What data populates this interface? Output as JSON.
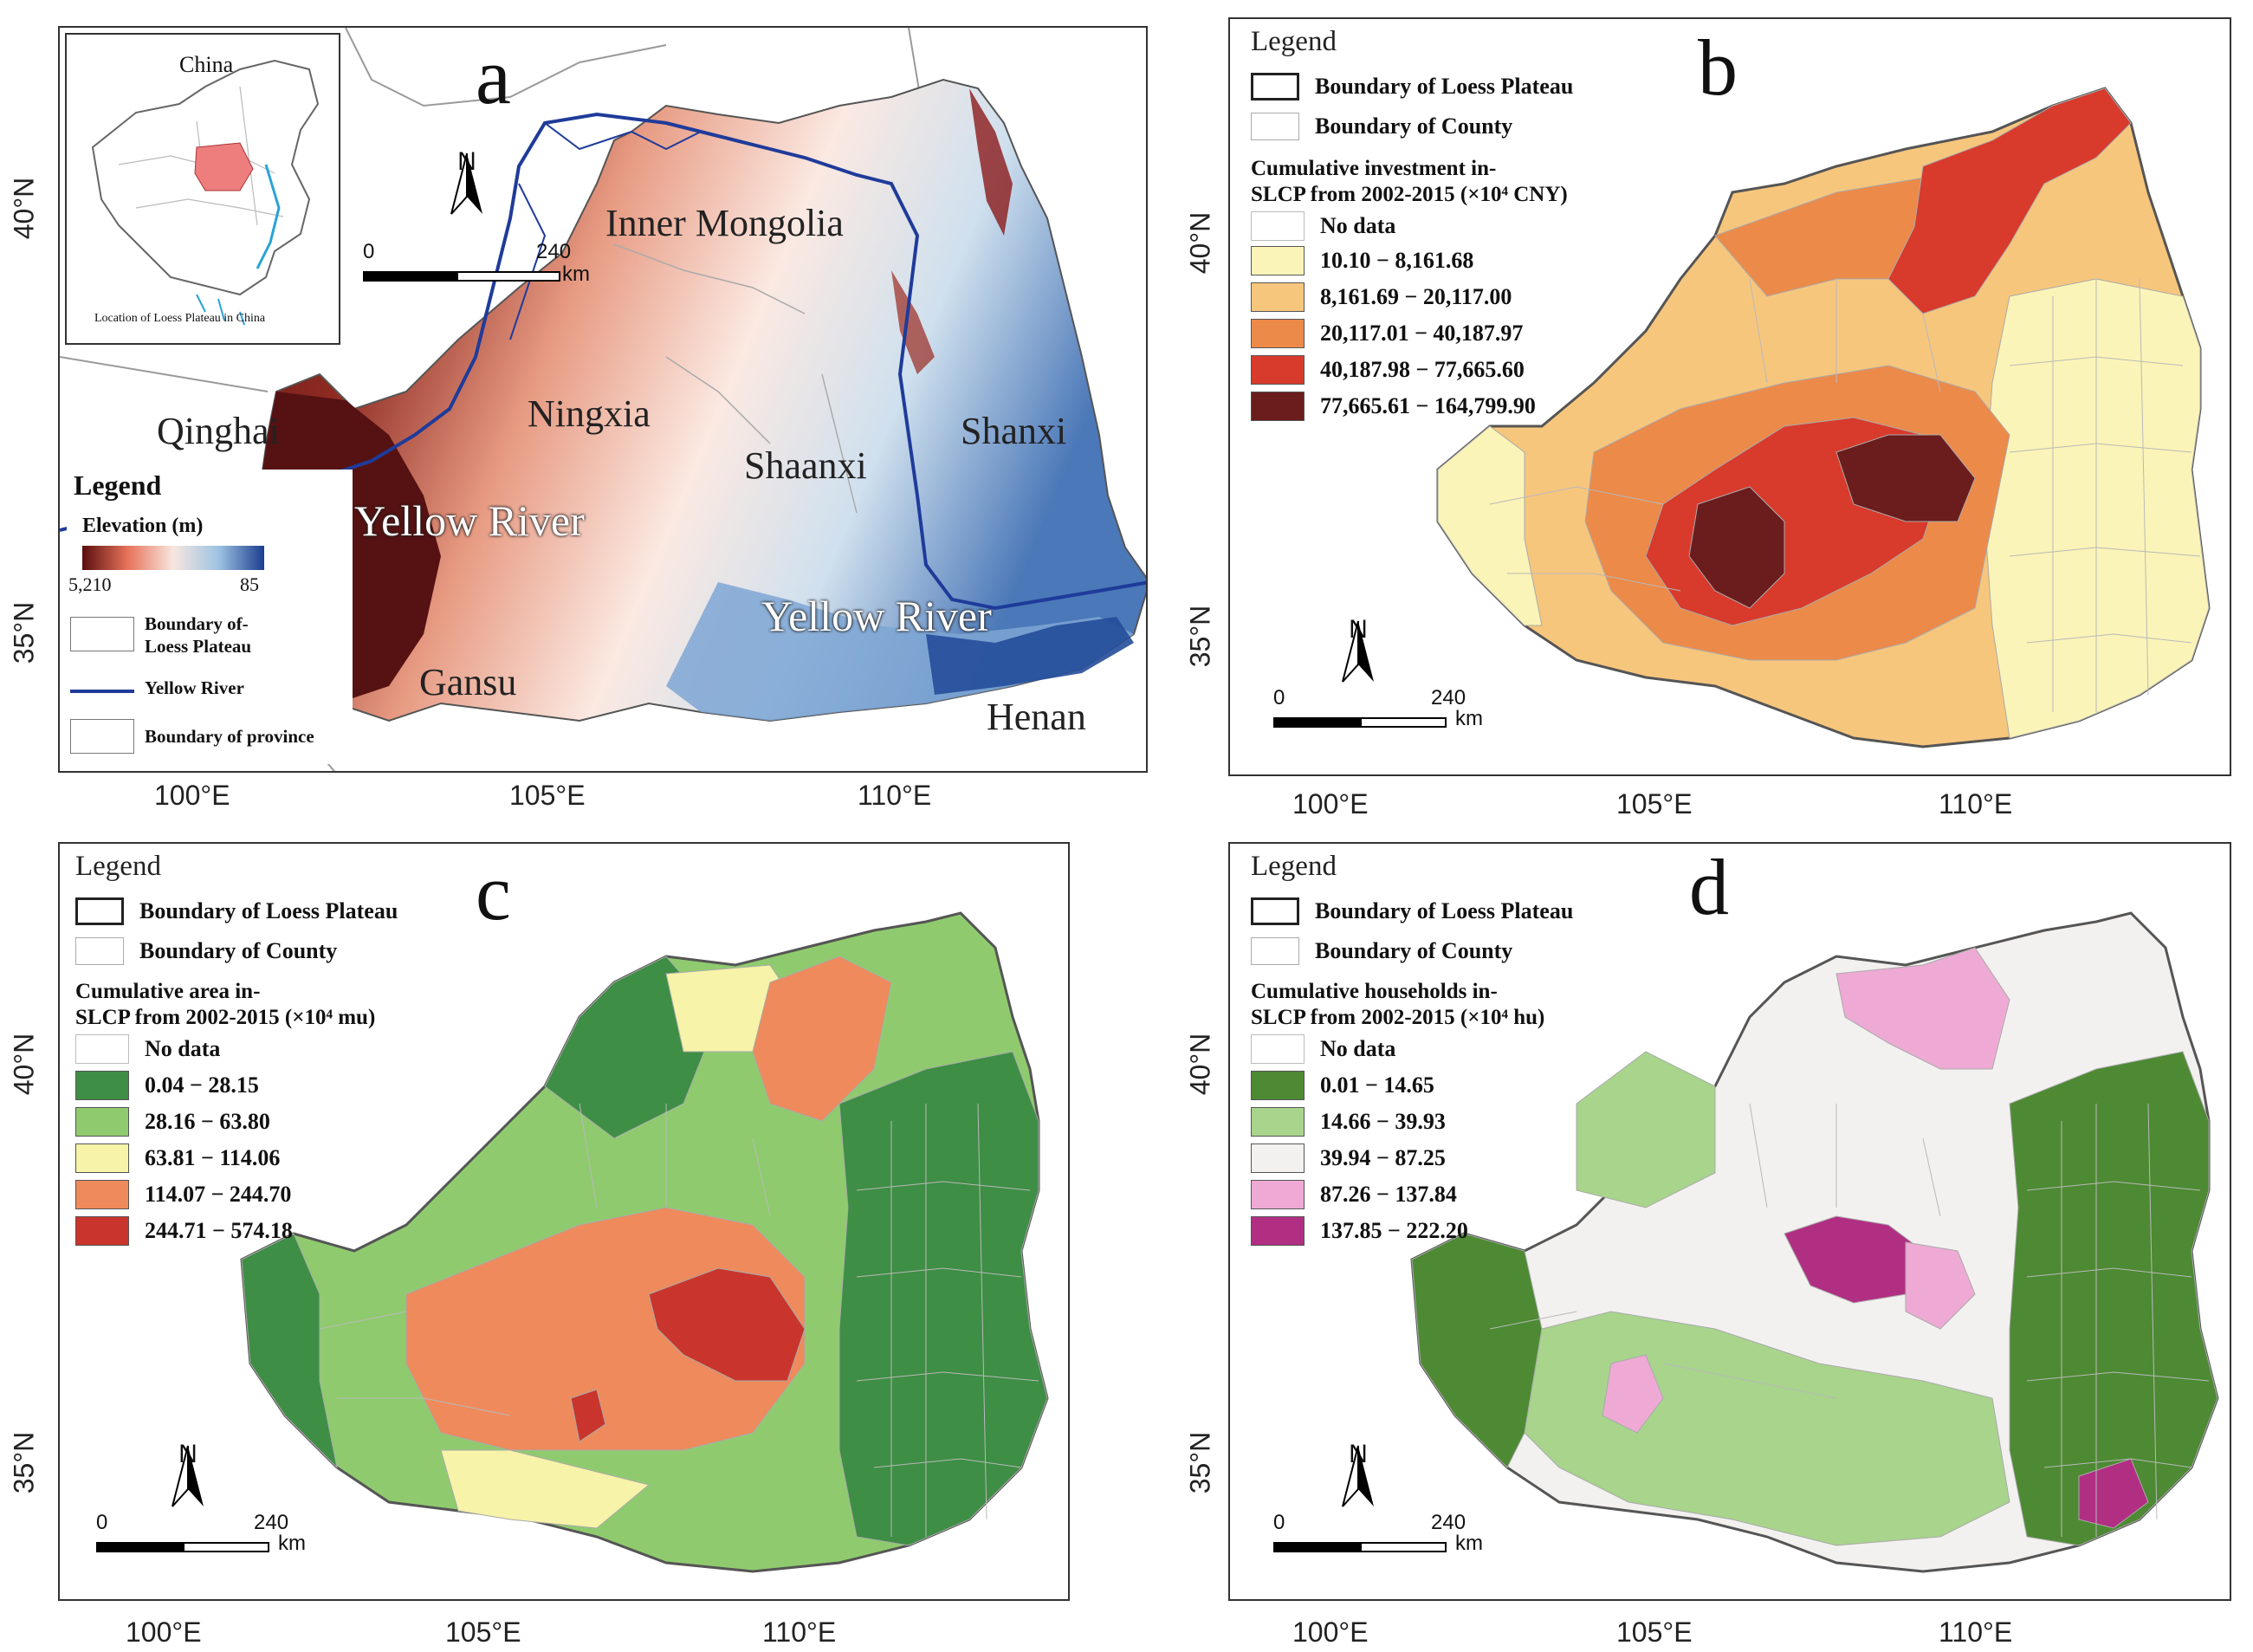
{
  "panels": {
    "a": {
      "letter": "a",
      "inset": {
        "title": "China",
        "caption": "Location of Loess Plateau in China"
      },
      "scale": {
        "zero": "0",
        "max": "240",
        "unit": "km"
      },
      "north": "N",
      "places": {
        "inner_mongolia": "Inner Mongolia",
        "ningxia": "Ningxia",
        "qinghai": "Qinghai",
        "shaanxi": "Shaanxi",
        "shanxi": "Shanxi",
        "yellow_river_1": "Yellow River",
        "yellow_river_2": "Yellow River",
        "gansu": "Gansu",
        "henan": "Henan"
      },
      "legend": {
        "title": "Legend",
        "elev_label": "Elevation (m)",
        "elev_high": "5,210",
        "elev_low": "85",
        "boundary_lp_1": "Boundary of-",
        "boundary_lp_2": "Loess Plateau",
        "yellow_river": "Yellow River",
        "boundary_prov": "Boundary of province"
      },
      "y_ticks": [
        "40°N",
        "35°N"
      ],
      "x_ticks": [
        "100°E",
        "105°E",
        "110°E"
      ]
    },
    "b": {
      "letter": "b",
      "legend_title": "Legend",
      "boundary_lp": "Boundary of Loess Plateau",
      "boundary_county": "Boundary of County",
      "subtitle_1": "Cumulative investment in-",
      "subtitle_2": "SLCP from 2002-2015 (×10⁴ CNY)",
      "no_data": "No data",
      "classes": [
        "10.10 − 8,161.68",
        "8,161.69 − 20,117.00",
        "20,117.01 − 40,187.97",
        "40,187.98 − 77,665.60",
        "77,665.61 − 164,799.90"
      ],
      "colors": [
        "#fbf4b8",
        "#f7c67d",
        "#ec8a4a",
        "#d83a2c",
        "#6b1c1c"
      ],
      "scale": {
        "zero": "0",
        "max": "240",
        "unit": "km"
      },
      "north": "N",
      "y_ticks": [
        "40°N",
        "35°N"
      ],
      "x_ticks": [
        "100°E",
        "105°E",
        "110°E"
      ]
    },
    "c": {
      "letter": "c",
      "legend_title": "Legend",
      "boundary_lp": "Boundary of Loess Plateau",
      "boundary_county": "Boundary of County",
      "subtitle_1": "Cumulative area in-",
      "subtitle_2": "SLCP from 2002-2015 (×10⁴ mu)",
      "no_data": "No data",
      "classes": [
        "0.04 − 28.15",
        "28.16 − 63.80",
        "63.81 − 114.06",
        "114.07 − 244.70",
        "244.71 − 574.18"
      ],
      "colors": [
        "#3e8e45",
        "#8fcb6e",
        "#f7f3a8",
        "#ee8a5c",
        "#c9352c"
      ],
      "scale": {
        "zero": "0",
        "max": "240",
        "unit": "km"
      },
      "north": "N",
      "y_ticks": [
        "40°N",
        "35°N"
      ],
      "x_ticks": [
        "100°E",
        "105°E",
        "110°E"
      ]
    },
    "d": {
      "letter": "d",
      "legend_title": "Legend",
      "boundary_lp": "Boundary of Loess Plateau",
      "boundary_county": "Boundary of County",
      "subtitle_1": "Cumulative households in-",
      "subtitle_2": "SLCP from 2002-2015 (×10⁴ hu)",
      "no_data": "No data",
      "classes": [
        "0.01 − 14.65",
        "14.66 − 39.93",
        "39.94 − 87.25",
        "87.26 − 137.84",
        "137.85 − 222.20"
      ],
      "colors": [
        "#4d8a33",
        "#a8d48c",
        "#f3f1f0",
        "#eeaad4",
        "#b12f83"
      ],
      "scale": {
        "zero": "0",
        "max": "240",
        "unit": "km"
      },
      "north": "N",
      "y_ticks": [
        "40°N",
        "35°N"
      ],
      "x_ticks": [
        "100°E",
        "105°E",
        "110°E"
      ]
    }
  }
}
